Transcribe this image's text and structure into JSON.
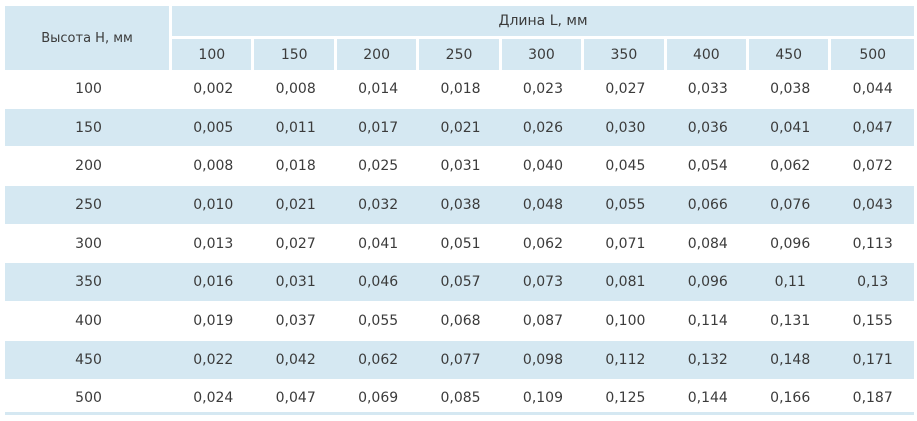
{
  "header": {
    "height_label": "Высота H, мм",
    "length_label": "Длина L, мм",
    "lengths": [
      "100",
      "150",
      "200",
      "250",
      "300",
      "350",
      "400",
      "450",
      "500"
    ]
  },
  "rows": [
    {
      "h": "100",
      "v": [
        "0,002",
        "0,008",
        "0,014",
        "0,018",
        "0,023",
        "0,027",
        "0,033",
        "0,038",
        "0,044"
      ]
    },
    {
      "h": "150",
      "v": [
        "0,005",
        "0,011",
        "0,017",
        "0,021",
        "0,026",
        "0,030",
        "0,036",
        "0,041",
        "0,047"
      ]
    },
    {
      "h": "200",
      "v": [
        "0,008",
        "0,018",
        "0,025",
        "0,031",
        "0,040",
        "0,045",
        "0,054",
        "0,062",
        "0,072"
      ]
    },
    {
      "h": "250",
      "v": [
        "0,010",
        "0,021",
        "0,032",
        "0,038",
        "0,048",
        "0,055",
        "0,066",
        "0,076",
        "0,043"
      ]
    },
    {
      "h": "300",
      "v": [
        "0,013",
        "0,027",
        "0,041",
        "0,051",
        "0,062",
        "0,071",
        "0,084",
        "0,096",
        "0,113"
      ]
    },
    {
      "h": "350",
      "v": [
        "0,016",
        "0,031",
        "0,046",
        "0,057",
        "0,073",
        "0,081",
        "0,096",
        "0,11",
        "0,13"
      ]
    },
    {
      "h": "400",
      "v": [
        "0,019",
        "0,037",
        "0,055",
        "0,068",
        "0,087",
        "0,100",
        "0,114",
        "0,131",
        "0,155"
      ]
    },
    {
      "h": "450",
      "v": [
        "0,022",
        "0,042",
        "0,062",
        "0,077",
        "0,098",
        "0,112",
        "0,132",
        "0,148",
        "0,171"
      ]
    },
    {
      "h": "500",
      "v": [
        "0,024",
        "0,047",
        "0,069",
        "0,085",
        "0,109",
        "0,125",
        "0,144",
        "0,166",
        "0,187"
      ]
    }
  ],
  "colors": {
    "header_bg": "#d5e8f2",
    "stripe_bg": "#d5e8f2",
    "text": "#3b3b3b"
  }
}
